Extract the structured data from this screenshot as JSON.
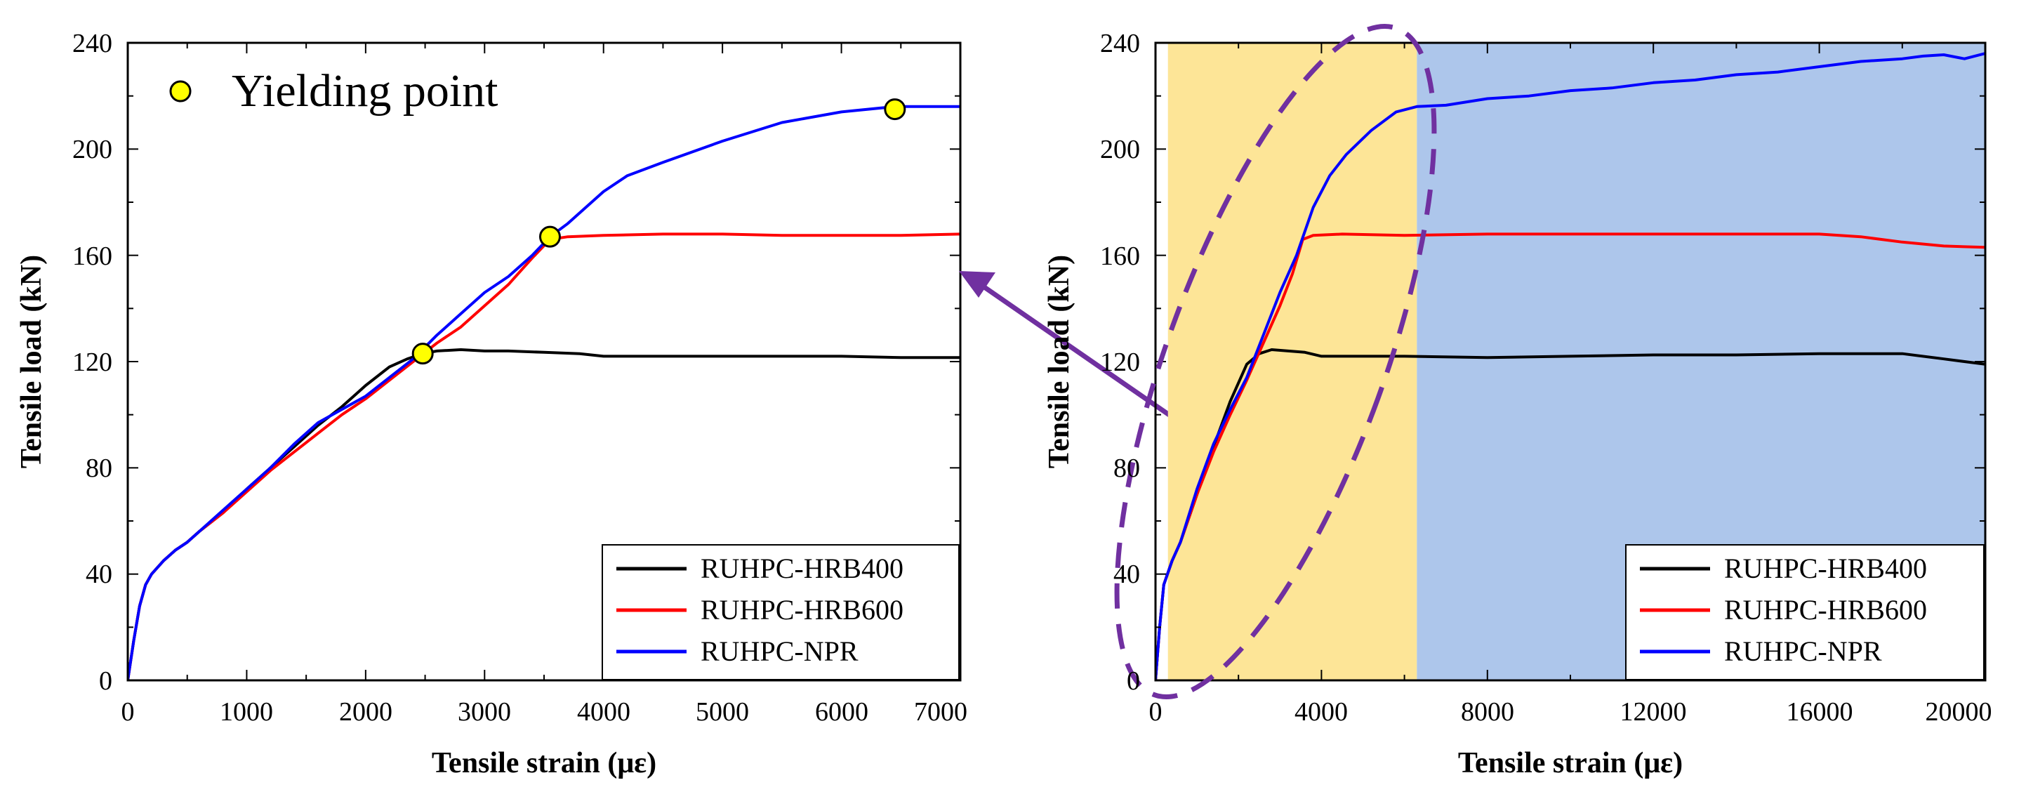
{
  "chart_data": [
    {
      "type": "line",
      "id": "left",
      "xlabel": "Tensile strain (με)",
      "ylabel": "Tensile load (kN)",
      "xlim": [
        0,
        7000
      ],
      "ylim": [
        0,
        240
      ],
      "xticks": [
        0,
        1000,
        2000,
        3000,
        4000,
        5000,
        6000,
        7000
      ],
      "yticks": [
        0,
        40,
        80,
        120,
        160,
        200,
        240
      ],
      "xtick_labels": [
        "0",
        "1000",
        "2000",
        "3000",
        "4000",
        "5000",
        "6000",
        "7000"
      ],
      "ytick_labels": [
        "0",
        "40",
        "80",
        "120",
        "160",
        "200",
        "240"
      ],
      "legend_position": "bottom-right",
      "series": [
        {
          "name": "RUHPC-HRB400",
          "color": "#000000",
          "x": [
            0,
            50,
            100,
            150,
            200,
            300,
            400,
            500,
            600,
            800,
            1000,
            1200,
            1400,
            1600,
            1800,
            2000,
            2200,
            2350,
            2480,
            2600,
            2800,
            3000,
            3200,
            3500,
            3800,
            4000,
            4500,
            5000,
            5500,
            6000,
            6500,
            7000
          ],
          "y": [
            0,
            15,
            28,
            36,
            40,
            45,
            49,
            52,
            56,
            63,
            72,
            80,
            88,
            96,
            103,
            111,
            118,
            121,
            123,
            124,
            124.5,
            124,
            124,
            123.5,
            123,
            122,
            122,
            122,
            122,
            122,
            121.5,
            121.5
          ]
        },
        {
          "name": "RUHPC-HRB600",
          "color": "#ff0000",
          "x": [
            0,
            50,
            100,
            150,
            200,
            300,
            400,
            500,
            600,
            800,
            1000,
            1200,
            1400,
            1600,
            1800,
            2000,
            2200,
            2400,
            2600,
            2800,
            3000,
            3200,
            3400,
            3550,
            3700,
            4000,
            4500,
            5000,
            5500,
            6000,
            6500,
            7000
          ],
          "y": [
            0,
            15,
            28,
            36,
            40,
            45,
            49,
            52,
            56,
            63,
            71,
            79,
            86,
            93,
            100,
            106,
            113,
            120,
            127,
            133,
            141,
            149,
            159,
            166,
            167,
            167.5,
            168,
            168,
            167.5,
            167.5,
            167.5,
            168
          ]
        },
        {
          "name": "RUHPC-NPR",
          "color": "#0000ff",
          "x": [
            0,
            50,
            100,
            150,
            200,
            300,
            400,
            500,
            600,
            800,
            1000,
            1200,
            1400,
            1600,
            1800,
            2000,
            2200,
            2400,
            2600,
            2800,
            3000,
            3200,
            3400,
            3550,
            3700,
            4000,
            4200,
            4500,
            5000,
            5500,
            6000,
            6450,
            7000
          ],
          "y": [
            0,
            15,
            28,
            36,
            40,
            45,
            49,
            52,
            56,
            64,
            72,
            80,
            89,
            97,
            102,
            107,
            114,
            121,
            130,
            138,
            146,
            152,
            160,
            167,
            172,
            184,
            190,
            195,
            203,
            210,
            214,
            216,
            216
          ]
        }
      ],
      "yield_points": {
        "legend_label": "Yielding point",
        "color": "#ffff00",
        "points": [
          {
            "x": 2480,
            "y": 123
          },
          {
            "x": 3550,
            "y": 167
          },
          {
            "x": 6450,
            "y": 215
          }
        ]
      }
    },
    {
      "type": "line",
      "id": "right",
      "xlabel": "Tensile strain (με)",
      "ylabel": "Tensile load (kN)",
      "xlim": [
        0,
        20000
      ],
      "ylim": [
        0,
        240
      ],
      "xticks": [
        0,
        4000,
        8000,
        12000,
        16000,
        20000
      ],
      "yticks": [
        0,
        40,
        80,
        120,
        160,
        200,
        240
      ],
      "xtick_labels": [
        "0",
        "4000",
        "8000",
        "12000",
        "16000",
        "20000"
      ],
      "ytick_labels": [
        "0",
        "40",
        "80",
        "120",
        "160",
        "200",
        "240"
      ],
      "legend_position": "bottom-right",
      "shaded_regions": [
        {
          "x_start": 300,
          "x_end": 6300,
          "color": "#fde597"
        },
        {
          "x_start": 6300,
          "x_end": 20000,
          "color": "#adc6eb"
        }
      ],
      "highlight_color": "#7030a0",
      "series": [
        {
          "name": "RUHPC-HRB400",
          "color": "#000000",
          "x": [
            0,
            100,
            200,
            400,
            600,
            1000,
            1400,
            1800,
            2200,
            2500,
            2800,
            3200,
            3600,
            4000,
            5000,
            6000,
            8000,
            10000,
            12000,
            14000,
            16000,
            18000,
            19000,
            20000
          ],
          "y": [
            0,
            20,
            36,
            45,
            52,
            70,
            88,
            105,
            119,
            123,
            124.5,
            124,
            123.5,
            122,
            122,
            122,
            121.5,
            122,
            122.5,
            122.5,
            123,
            123,
            121,
            119
          ]
        },
        {
          "name": "RUHPC-HRB600",
          "color": "#ff0000",
          "x": [
            0,
            100,
            200,
            400,
            600,
            1000,
            1400,
            1800,
            2200,
            2600,
            3000,
            3300,
            3550,
            3800,
            4500,
            6000,
            8000,
            10000,
            12000,
            14000,
            16000,
            17000,
            18000,
            19000,
            20000
          ],
          "y": [
            0,
            20,
            36,
            45,
            52,
            70,
            86,
            100,
            113,
            127,
            141,
            153,
            166,
            167.5,
            168,
            167.5,
            168,
            168,
            168,
            168,
            168,
            167,
            165,
            163.5,
            163
          ]
        },
        {
          "name": "RUHPC-NPR",
          "color": "#0000ff",
          "x": [
            0,
            100,
            200,
            400,
            600,
            1000,
            1400,
            1800,
            2200,
            2600,
            3000,
            3400,
            3800,
            4200,
            4600,
            5200,
            5800,
            6300,
            7000,
            8000,
            9000,
            10000,
            11000,
            12000,
            13000,
            14000,
            15000,
            16000,
            17000,
            18000,
            18500,
            19000,
            19500,
            20000
          ],
          "y": [
            0,
            20,
            36,
            45,
            52,
            72,
            89,
            102,
            114,
            130,
            146,
            160,
            178,
            190,
            198,
            207,
            214,
            216,
            216.5,
            219,
            220,
            222,
            223,
            225,
            226,
            228,
            229,
            231,
            233,
            234,
            235,
            235.5,
            234,
            236
          ]
        }
      ]
    }
  ]
}
